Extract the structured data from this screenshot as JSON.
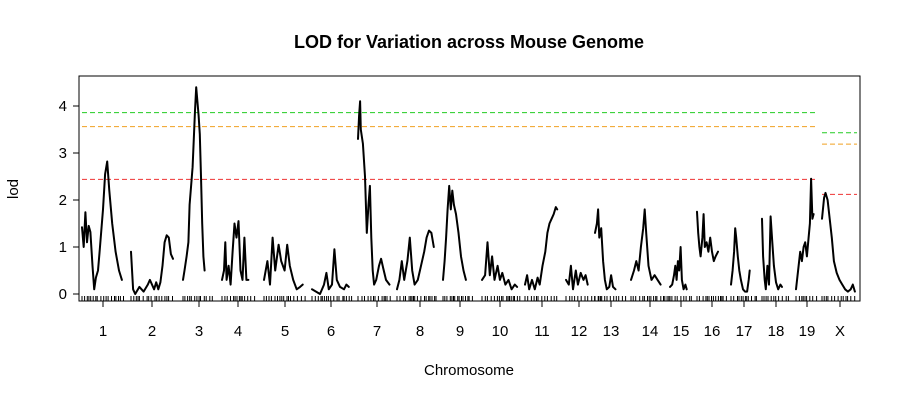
{
  "chart_data": {
    "type": "line",
    "title": "LOD for Variation across Mouse Genome",
    "xlabel": "Chromosome",
    "ylabel": "lod",
    "ylim": [
      -0.15,
      4.5
    ],
    "yticks": [
      0,
      1,
      2,
      3,
      4
    ],
    "grid": false,
    "legend": "none",
    "chromosomes": [
      "1",
      "2",
      "3",
      "4",
      "5",
      "6",
      "7",
      "8",
      "9",
      "10",
      "11",
      "12",
      "13",
      "14",
      "15",
      "16",
      "17",
      "18",
      "19",
      "X"
    ],
    "thresholds": [
      {
        "color": "#22cc22",
        "autosome": 3.86,
        "x": 3.43
      },
      {
        "color": "#f0a020",
        "autosome": 3.56,
        "x": 3.19
      },
      {
        "color": "#ee3333",
        "autosome": 2.44,
        "x": 2.12
      }
    ],
    "series": [
      {
        "chr": "1",
        "points": [
          [
            0,
            1.42
          ],
          [
            0.04,
            1.0
          ],
          [
            0.08,
            1.74
          ],
          [
            0.12,
            1.1
          ],
          [
            0.16,
            1.45
          ],
          [
            0.2,
            1.32
          ],
          [
            0.25,
            0.6
          ],
          [
            0.29,
            0.1
          ],
          [
            0.33,
            0.35
          ],
          [
            0.38,
            0.5
          ],
          [
            0.42,
            0.9
          ],
          [
            0.5,
            1.8
          ],
          [
            0.55,
            2.55
          ],
          [
            0.6,
            2.82
          ],
          [
            0.65,
            2.2
          ],
          [
            0.72,
            1.5
          ],
          [
            0.8,
            0.9
          ],
          [
            0.88,
            0.5
          ],
          [
            0.95,
            0.3
          ]
        ]
      },
      {
        "chr": "2",
        "points": [
          [
            0,
            0.9
          ],
          [
            0.05,
            0.1
          ],
          [
            0.1,
            0.0
          ],
          [
            0.2,
            0.15
          ],
          [
            0.3,
            0.05
          ],
          [
            0.4,
            0.2
          ],
          [
            0.45,
            0.3
          ],
          [
            0.55,
            0.1
          ],
          [
            0.6,
            0.25
          ],
          [
            0.65,
            0.1
          ],
          [
            0.7,
            0.25
          ],
          [
            0.75,
            0.6
          ],
          [
            0.8,
            1.1
          ],
          [
            0.85,
            1.25
          ],
          [
            0.9,
            1.2
          ],
          [
            0.95,
            0.85
          ],
          [
            1.0,
            0.75
          ]
        ]
      },
      {
        "chr": "3",
        "points": [
          [
            0,
            0.3
          ],
          [
            0.05,
            0.5
          ],
          [
            0.12,
            0.8
          ],
          [
            0.18,
            1.1
          ],
          [
            0.22,
            1.9
          ],
          [
            0.27,
            2.3
          ],
          [
            0.32,
            2.7
          ],
          [
            0.36,
            3.3
          ],
          [
            0.4,
            3.9
          ],
          [
            0.44,
            4.4
          ],
          [
            0.48,
            4.1
          ],
          [
            0.52,
            3.8
          ],
          [
            0.56,
            3.4
          ],
          [
            0.6,
            2.5
          ],
          [
            0.64,
            1.5
          ],
          [
            0.68,
            0.8
          ],
          [
            0.72,
            0.5
          ]
        ]
      },
      {
        "chr": "4",
        "points": [
          [
            0,
            0.3
          ],
          [
            0.06,
            0.5
          ],
          [
            0.1,
            1.1
          ],
          [
            0.14,
            0.3
          ],
          [
            0.2,
            0.6
          ],
          [
            0.26,
            0.2
          ],
          [
            0.32,
            0.9
          ],
          [
            0.38,
            1.5
          ],
          [
            0.44,
            1.2
          ],
          [
            0.5,
            1.55
          ],
          [
            0.56,
            0.5
          ],
          [
            0.62,
            0.3
          ],
          [
            0.68,
            1.2
          ],
          [
            0.74,
            0.3
          ],
          [
            0.8,
            0.3
          ]
        ]
      },
      {
        "chr": "5",
        "points": [
          [
            0,
            0.3
          ],
          [
            0.08,
            0.7
          ],
          [
            0.14,
            0.2
          ],
          [
            0.2,
            1.2
          ],
          [
            0.26,
            0.5
          ],
          [
            0.34,
            1.05
          ],
          [
            0.4,
            0.7
          ],
          [
            0.48,
            0.5
          ],
          [
            0.54,
            1.05
          ],
          [
            0.6,
            0.6
          ],
          [
            0.68,
            0.3
          ],
          [
            0.76,
            0.1
          ],
          [
            0.84,
            0.15
          ],
          [
            0.9,
            0.2
          ]
        ]
      },
      {
        "chr": "6",
        "points": [
          [
            0,
            0.1
          ],
          [
            0.1,
            0.05
          ],
          [
            0.2,
            0.0
          ],
          [
            0.3,
            0.2
          ],
          [
            0.36,
            0.45
          ],
          [
            0.42,
            0.1
          ],
          [
            0.5,
            0.2
          ],
          [
            0.56,
            0.95
          ],
          [
            0.62,
            0.3
          ],
          [
            0.7,
            0.15
          ],
          [
            0.8,
            0.1
          ],
          [
            0.86,
            0.2
          ],
          [
            0.92,
            0.15
          ]
        ]
      },
      {
        "chr": "7",
        "points": [
          [
            0,
            3.3
          ],
          [
            0.03,
            3.8
          ],
          [
            0.06,
            4.1
          ],
          [
            0.08,
            3.5
          ],
          [
            0.14,
            3.2
          ],
          [
            0.2,
            2.5
          ],
          [
            0.25,
            1.3
          ],
          [
            0.3,
            1.9
          ],
          [
            0.34,
            2.3
          ],
          [
            0.38,
            1.2
          ],
          [
            0.42,
            0.5
          ],
          [
            0.46,
            0.2
          ],
          [
            0.52,
            0.3
          ],
          [
            0.6,
            0.6
          ],
          [
            0.66,
            0.75
          ],
          [
            0.72,
            0.55
          ],
          [
            0.8,
            0.3
          ],
          [
            0.9,
            0.2
          ]
        ]
      },
      {
        "chr": "8",
        "points": [
          [
            0,
            0.1
          ],
          [
            0.06,
            0.3
          ],
          [
            0.12,
            0.7
          ],
          [
            0.18,
            0.3
          ],
          [
            0.26,
            0.7
          ],
          [
            0.32,
            1.2
          ],
          [
            0.38,
            0.5
          ],
          [
            0.44,
            0.2
          ],
          [
            0.52,
            0.3
          ],
          [
            0.6,
            0.6
          ],
          [
            0.68,
            0.9
          ],
          [
            0.74,
            1.2
          ],
          [
            0.8,
            1.35
          ],
          [
            0.86,
            1.3
          ],
          [
            0.92,
            1.0
          ]
        ]
      },
      {
        "chr": "9",
        "points": [
          [
            0,
            0.3
          ],
          [
            0.05,
            0.7
          ],
          [
            0.1,
            1.2
          ],
          [
            0.15,
            1.8
          ],
          [
            0.2,
            2.3
          ],
          [
            0.25,
            1.8
          ],
          [
            0.3,
            2.2
          ],
          [
            0.35,
            1.9
          ],
          [
            0.42,
            1.7
          ],
          [
            0.5,
            1.3
          ],
          [
            0.58,
            0.8
          ],
          [
            0.66,
            0.5
          ],
          [
            0.74,
            0.3
          ]
        ]
      },
      {
        "chr": "10",
        "points": [
          [
            0,
            0.3
          ],
          [
            0.08,
            0.4
          ],
          [
            0.14,
            1.1
          ],
          [
            0.2,
            0.4
          ],
          [
            0.26,
            0.8
          ],
          [
            0.32,
            0.3
          ],
          [
            0.4,
            0.6
          ],
          [
            0.46,
            0.3
          ],
          [
            0.52,
            0.45
          ],
          [
            0.6,
            0.2
          ],
          [
            0.68,
            0.3
          ],
          [
            0.76,
            0.1
          ],
          [
            0.84,
            0.2
          ],
          [
            0.9,
            0.15
          ]
        ]
      },
      {
        "chr": "11",
        "points": [
          [
            0,
            0.2
          ],
          [
            0.06,
            0.4
          ],
          [
            0.12,
            0.1
          ],
          [
            0.2,
            0.3
          ],
          [
            0.28,
            0.1
          ],
          [
            0.36,
            0.35
          ],
          [
            0.42,
            0.2
          ],
          [
            0.5,
            0.6
          ],
          [
            0.58,
            0.9
          ],
          [
            0.64,
            1.3
          ],
          [
            0.7,
            1.5
          ],
          [
            0.76,
            1.6
          ],
          [
            0.82,
            1.7
          ],
          [
            0.88,
            1.85
          ],
          [
            0.92,
            1.8
          ]
        ]
      },
      {
        "chr": "12",
        "points": [
          [
            0,
            0.3
          ],
          [
            0.08,
            0.2
          ],
          [
            0.14,
            0.6
          ],
          [
            0.2,
            0.1
          ],
          [
            0.28,
            0.5
          ],
          [
            0.34,
            0.2
          ],
          [
            0.42,
            0.45
          ],
          [
            0.5,
            0.3
          ],
          [
            0.56,
            0.4
          ],
          [
            0.62,
            0.2
          ]
        ]
      },
      {
        "chr": "13",
        "points": [
          [
            0,
            1.3
          ],
          [
            0.06,
            1.5
          ],
          [
            0.1,
            1.8
          ],
          [
            0.14,
            1.2
          ],
          [
            0.2,
            1.4
          ],
          [
            0.26,
            0.7
          ],
          [
            0.32,
            0.3
          ],
          [
            0.38,
            0.1
          ],
          [
            0.46,
            0.15
          ],
          [
            0.52,
            0.4
          ],
          [
            0.58,
            0.15
          ],
          [
            0.66,
            0.1
          ]
        ]
      },
      {
        "chr": "14",
        "points": [
          [
            0,
            0.3
          ],
          [
            0.08,
            0.5
          ],
          [
            0.14,
            0.7
          ],
          [
            0.2,
            0.5
          ],
          [
            0.26,
            1.0
          ],
          [
            0.32,
            1.4
          ],
          [
            0.36,
            1.8
          ],
          [
            0.4,
            1.3
          ],
          [
            0.46,
            0.6
          ],
          [
            0.54,
            0.3
          ],
          [
            0.62,
            0.4
          ],
          [
            0.7,
            0.3
          ],
          [
            0.78,
            0.2
          ]
        ]
      },
      {
        "chr": "15",
        "points": [
          [
            0,
            0.15
          ],
          [
            0.1,
            0.2
          ],
          [
            0.18,
            0.4
          ],
          [
            0.24,
            0.6
          ],
          [
            0.3,
            0.3
          ],
          [
            0.36,
            0.7
          ],
          [
            0.42,
            0.5
          ],
          [
            0.48,
            1.0
          ],
          [
            0.54,
            0.3
          ],
          [
            0.62,
            0.1
          ],
          [
            0.7,
            0.2
          ],
          [
            0.76,
            0.1
          ]
        ]
      },
      {
        "chr": "16",
        "points": [
          [
            0,
            1.75
          ],
          [
            0.04,
            1.3
          ],
          [
            0.08,
            1.0
          ],
          [
            0.12,
            0.8
          ],
          [
            0.18,
            1.2
          ],
          [
            0.22,
            1.7
          ],
          [
            0.26,
            1.0
          ],
          [
            0.32,
            1.1
          ],
          [
            0.38,
            0.9
          ],
          [
            0.44,
            1.2
          ],
          [
            0.5,
            0.9
          ],
          [
            0.56,
            0.7
          ],
          [
            0.62,
            0.8
          ],
          [
            0.7,
            0.9
          ]
        ]
      },
      {
        "chr": "17",
        "points": [
          [
            0,
            0.2
          ],
          [
            0.06,
            0.5
          ],
          [
            0.12,
            0.9
          ],
          [
            0.16,
            1.4
          ],
          [
            0.2,
            1.2
          ],
          [
            0.26,
            0.8
          ],
          [
            0.32,
            0.5
          ],
          [
            0.38,
            0.3
          ],
          [
            0.46,
            0.1
          ],
          [
            0.54,
            0.05
          ],
          [
            0.62,
            0.05
          ],
          [
            0.68,
            0.3
          ],
          [
            0.72,
            0.5
          ]
        ]
      },
      {
        "chr": "18",
        "points": [
          [
            0,
            1.6
          ],
          [
            0.04,
            0.8
          ],
          [
            0.1,
            0.3
          ],
          [
            0.14,
            0.1
          ],
          [
            0.2,
            0.6
          ],
          [
            0.26,
            0.2
          ],
          [
            0.32,
            1.65
          ],
          [
            0.38,
            1.1
          ],
          [
            0.44,
            0.6
          ],
          [
            0.52,
            0.25
          ],
          [
            0.6,
            0.1
          ],
          [
            0.68,
            0.2
          ],
          [
            0.74,
            0.15
          ]
        ]
      },
      {
        "chr": "19",
        "points": [
          [
            0,
            0.1
          ],
          [
            0.1,
            0.5
          ],
          [
            0.2,
            0.9
          ],
          [
            0.28,
            0.7
          ],
          [
            0.36,
            1.0
          ],
          [
            0.44,
            1.1
          ],
          [
            0.52,
            0.8
          ],
          [
            0.6,
            1.2
          ],
          [
            0.66,
            1.5
          ],
          [
            0.72,
            2.45
          ],
          [
            0.78,
            1.6
          ],
          [
            0.84,
            1.7
          ]
        ]
      },
      {
        "chr": "X",
        "points": [
          [
            0,
            1.6
          ],
          [
            0.06,
            2.05
          ],
          [
            0.1,
            2.15
          ],
          [
            0.16,
            2.0
          ],
          [
            0.22,
            1.6
          ],
          [
            0.28,
            1.2
          ],
          [
            0.34,
            0.7
          ],
          [
            0.42,
            0.45
          ],
          [
            0.5,
            0.3
          ],
          [
            0.58,
            0.2
          ],
          [
            0.66,
            0.1
          ],
          [
            0.74,
            0.05
          ],
          [
            0.82,
            0.1
          ],
          [
            0.88,
            0.2
          ],
          [
            0.94,
            0.05
          ]
        ]
      }
    ]
  }
}
